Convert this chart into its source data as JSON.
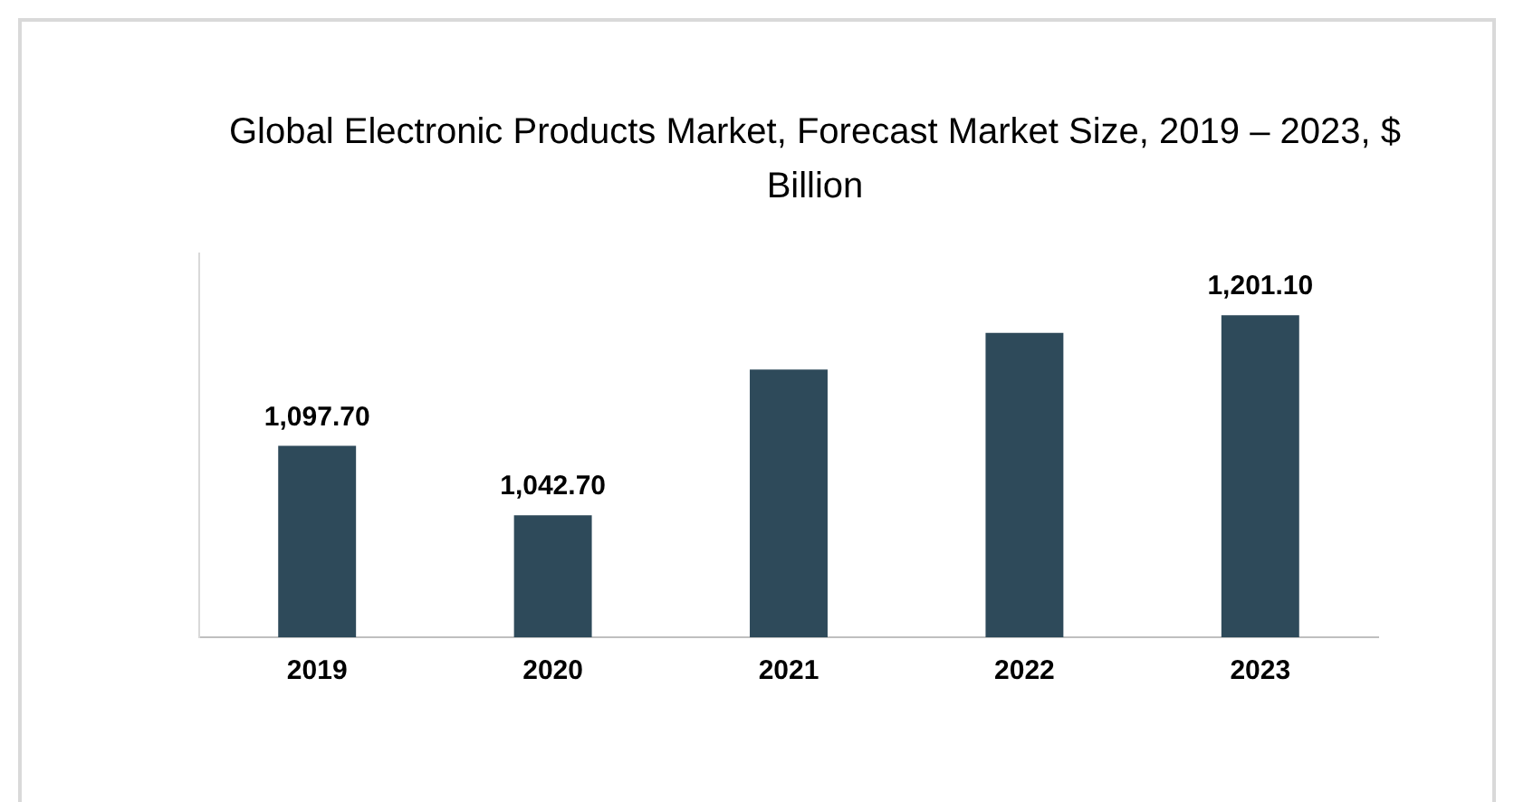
{
  "chart_data": {
    "type": "bar",
    "title": "Global Electronic Products Market, Forecast Market Size, 2019 – 2023, $ Billion",
    "categories": [
      "2019",
      "2020",
      "2021",
      "2022",
      "2023"
    ],
    "values": [
      1097.7,
      1042.7,
      1158,
      1187,
      1201.1
    ],
    "value_labels": [
      "1,097.70",
      "1,042.70",
      null,
      null,
      "1,201.10"
    ],
    "color": "#2e4a5a",
    "ylim": [
      946,
      1250
    ],
    "tick_labels": "x",
    "grid": false,
    "legend": false
  }
}
